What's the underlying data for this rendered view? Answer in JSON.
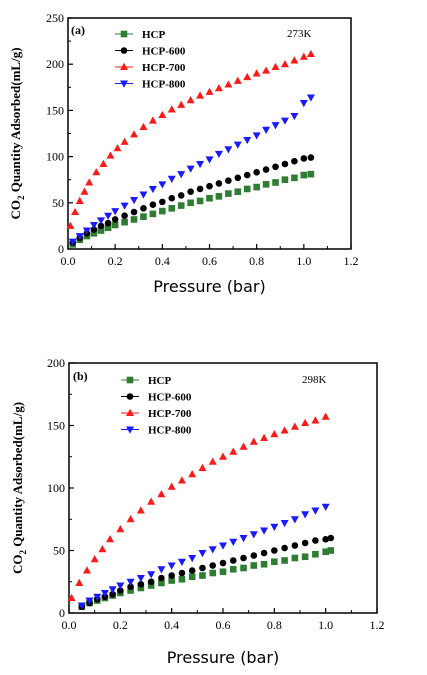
{
  "chart_data": [
    {
      "type": "scatter",
      "panel_label": "(a)",
      "temperature_label": "273K",
      "xlabel": "Pressure (bar)",
      "ylabel_prefix": "CO",
      "ylabel_sub": "2",
      "ylabel_suffix": " Quantity Adsorbed(mL/g)",
      "xlim": [
        0,
        1.2
      ],
      "ylim": [
        0,
        250
      ],
      "xticks": [
        0.0,
        0.2,
        0.4,
        0.6,
        0.8,
        1.0,
        1.2
      ],
      "xtick_labels": [
        "0.0",
        "0.2",
        "0.4",
        "0.6",
        "0.8",
        "1.0",
        "1.2"
      ],
      "yticks": [
        0,
        50,
        100,
        150,
        200,
        250
      ],
      "ytick_labels": [
        "0",
        "50",
        "100",
        "150",
        "200",
        "250"
      ],
      "legend_position": "top-left",
      "series": [
        {
          "name": "HCP",
          "color": "#2e7d32",
          "marker": "square",
          "x": [
            0.02,
            0.05,
            0.08,
            0.11,
            0.14,
            0.17,
            0.2,
            0.24,
            0.28,
            0.32,
            0.36,
            0.4,
            0.44,
            0.48,
            0.52,
            0.56,
            0.6,
            0.64,
            0.68,
            0.72,
            0.76,
            0.8,
            0.84,
            0.88,
            0.92,
            0.96,
            1.0,
            1.03
          ],
          "y": [
            5,
            10,
            14,
            17,
            20,
            23,
            26,
            29,
            32,
            35,
            38,
            41,
            44,
            47,
            50,
            52,
            55,
            57,
            60,
            62,
            65,
            67,
            70,
            72,
            75,
            77,
            80,
            81
          ]
        },
        {
          "name": "HCP-600",
          "color": "#000000",
          "marker": "circle",
          "x": [
            0.02,
            0.05,
            0.08,
            0.11,
            0.14,
            0.17,
            0.2,
            0.24,
            0.28,
            0.32,
            0.36,
            0.4,
            0.44,
            0.48,
            0.52,
            0.56,
            0.6,
            0.64,
            0.68,
            0.72,
            0.76,
            0.8,
            0.84,
            0.88,
            0.92,
            0.96,
            1.0,
            1.03
          ],
          "y": [
            7,
            12,
            17,
            21,
            25,
            28,
            32,
            36,
            40,
            44,
            48,
            51,
            55,
            58,
            62,
            65,
            68,
            71,
            74,
            77,
            80,
            83,
            86,
            89,
            92,
            95,
            98,
            99
          ]
        },
        {
          "name": "HCP-700",
          "color": "#ff1a1a",
          "marker": "triangle-up",
          "x": [
            0.01,
            0.03,
            0.05,
            0.07,
            0.09,
            0.12,
            0.15,
            0.18,
            0.21,
            0.24,
            0.28,
            0.32,
            0.36,
            0.4,
            0.44,
            0.48,
            0.52,
            0.56,
            0.6,
            0.64,
            0.68,
            0.72,
            0.76,
            0.8,
            0.84,
            0.88,
            0.92,
            0.96,
            1.0,
            1.03
          ],
          "y": [
            25,
            40,
            52,
            62,
            72,
            83,
            92,
            101,
            109,
            116,
            124,
            132,
            139,
            145,
            151,
            156,
            161,
            166,
            170,
            174,
            178,
            182,
            186,
            190,
            193,
            197,
            200,
            204,
            208,
            211
          ]
        },
        {
          "name": "HCP-800",
          "color": "#1a1aff",
          "marker": "triangle-down",
          "x": [
            0.02,
            0.05,
            0.08,
            0.11,
            0.14,
            0.17,
            0.2,
            0.24,
            0.28,
            0.32,
            0.36,
            0.4,
            0.44,
            0.48,
            0.52,
            0.56,
            0.6,
            0.64,
            0.68,
            0.72,
            0.76,
            0.8,
            0.84,
            0.88,
            0.92,
            0.96,
            1.0,
            1.03
          ],
          "y": [
            8,
            14,
            20,
            26,
            31,
            36,
            41,
            47,
            53,
            59,
            65,
            70,
            76,
            81,
            87,
            92,
            97,
            103,
            108,
            113,
            118,
            123,
            129,
            134,
            139,
            144,
            158,
            164
          ]
        }
      ]
    },
    {
      "type": "scatter",
      "panel_label": "(b)",
      "temperature_label": "298K",
      "xlabel": "Pressure (bar)",
      "ylabel_prefix": "CO",
      "ylabel_sub": "2",
      "ylabel_suffix": " Quantity Adsorbed(mL/g)",
      "xlim": [
        0,
        1.2
      ],
      "ylim": [
        0,
        200
      ],
      "xticks": [
        0.0,
        0.2,
        0.4,
        0.6,
        0.8,
        1.0,
        1.2
      ],
      "xtick_labels": [
        "0.0",
        "0.2",
        "0.4",
        "0.6",
        "0.8",
        "1.0",
        "1.2"
      ],
      "yticks": [
        0,
        50,
        100,
        150,
        200
      ],
      "ytick_labels": [
        "0",
        "50",
        "100",
        "150",
        "200"
      ],
      "legend_position": "top-left",
      "series": [
        {
          "name": "HCP",
          "color": "#2e7d32",
          "marker": "square",
          "x": [
            0.05,
            0.08,
            0.11,
            0.14,
            0.17,
            0.2,
            0.24,
            0.28,
            0.32,
            0.36,
            0.4,
            0.44,
            0.48,
            0.52,
            0.56,
            0.6,
            0.64,
            0.68,
            0.72,
            0.76,
            0.8,
            0.84,
            0.88,
            0.92,
            0.96,
            1.0,
            1.02
          ],
          "y": [
            5,
            8,
            10,
            12,
            14,
            16,
            18,
            20,
            22,
            24,
            26,
            27,
            29,
            30,
            32,
            33,
            35,
            36,
            38,
            39,
            41,
            42,
            44,
            45,
            47,
            49,
            50
          ]
        },
        {
          "name": "HCP-600",
          "color": "#000000",
          "marker": "circle",
          "x": [
            0.05,
            0.08,
            0.11,
            0.14,
            0.17,
            0.2,
            0.24,
            0.28,
            0.32,
            0.36,
            0.4,
            0.44,
            0.48,
            0.52,
            0.56,
            0.6,
            0.64,
            0.68,
            0.72,
            0.76,
            0.8,
            0.84,
            0.88,
            0.92,
            0.96,
            1.0,
            1.02
          ],
          "y": [
            5,
            8,
            11,
            13,
            15,
            18,
            21,
            23,
            25,
            28,
            30,
            32,
            34,
            36,
            38,
            40,
            42,
            44,
            46,
            48,
            50,
            52,
            54,
            56,
            58,
            59,
            60
          ]
        },
        {
          "name": "HCP-700",
          "color": "#ff1a1a",
          "marker": "triangle-up",
          "x": [
            0.01,
            0.04,
            0.07,
            0.1,
            0.13,
            0.16,
            0.2,
            0.24,
            0.28,
            0.32,
            0.36,
            0.4,
            0.44,
            0.48,
            0.52,
            0.56,
            0.6,
            0.64,
            0.68,
            0.72,
            0.76,
            0.8,
            0.84,
            0.88,
            0.92,
            0.96,
            1.0
          ],
          "y": [
            12,
            24,
            34,
            43,
            51,
            59,
            67,
            75,
            82,
            89,
            95,
            101,
            106,
            111,
            116,
            121,
            125,
            129,
            133,
            137,
            140,
            143,
            146,
            149,
            152,
            154,
            157
          ]
        },
        {
          "name": "HCP-800",
          "color": "#1a1aff",
          "marker": "triangle-down",
          "x": [
            0.05,
            0.08,
            0.11,
            0.14,
            0.17,
            0.2,
            0.24,
            0.28,
            0.32,
            0.36,
            0.4,
            0.44,
            0.48,
            0.52,
            0.56,
            0.6,
            0.64,
            0.68,
            0.72,
            0.76,
            0.8,
            0.84,
            0.88,
            0.92,
            0.96,
            1.0
          ],
          "y": [
            6,
            10,
            13,
            16,
            19,
            22,
            25,
            28,
            31,
            35,
            38,
            41,
            44,
            48,
            51,
            54,
            57,
            60,
            63,
            66,
            69,
            72,
            75,
            79,
            82,
            85
          ]
        }
      ]
    }
  ]
}
